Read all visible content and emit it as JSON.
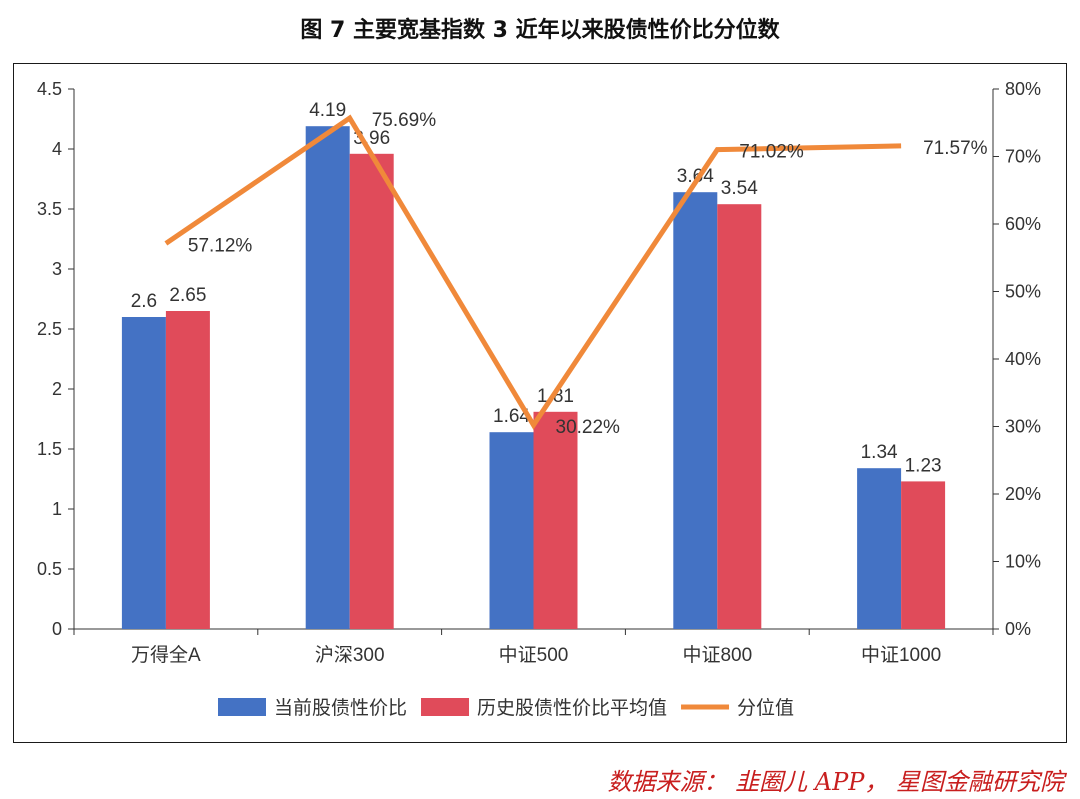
{
  "title": "图 7 主要宽基指数 3 近年以来股债性价比分位数",
  "source": "数据来源： 韭圈儿 APP， 星图金融研究院",
  "chart_data": {
    "type": "bar",
    "categories": [
      "万得全A",
      "沪深300",
      "中证500",
      "中证800",
      "中证1000"
    ],
    "series": [
      {
        "name": "当前股债性价比",
        "type": "bar",
        "axis": "left",
        "color": "#4472c4",
        "values": [
          2.6,
          4.19,
          1.64,
          3.64,
          1.34
        ],
        "labels": [
          "2.6",
          "4.19",
          "1.64",
          "3.64",
          "1.34"
        ]
      },
      {
        "name": "历史股债性价比平均值",
        "type": "bar",
        "axis": "left",
        "color": "#e04b5a",
        "values": [
          2.65,
          3.96,
          1.81,
          3.54,
          1.23
        ],
        "labels": [
          "2.65",
          "3.96",
          "1.81",
          "3.54",
          "1.23"
        ]
      },
      {
        "name": "分位值",
        "type": "line",
        "axis": "right",
        "color": "#f0893a",
        "values": [
          57.12,
          75.69,
          30.22,
          71.02,
          71.57
        ],
        "labels": [
          "57.12%",
          "75.69%",
          "30.22%",
          "71.02%",
          "71.57%"
        ]
      }
    ],
    "y_left": {
      "min": 0,
      "max": 4.5,
      "ticks": [
        "0",
        "0.5",
        "1",
        "1.5",
        "2",
        "2.5",
        "3",
        "3.5",
        "4",
        "4.5"
      ]
    },
    "y_right": {
      "min": 0,
      "max": 80,
      "ticks": [
        "0%",
        "10%",
        "20%",
        "30%",
        "40%",
        "50%",
        "60%",
        "70%",
        "80%"
      ]
    },
    "grid": false,
    "legend_position": "bottom"
  }
}
